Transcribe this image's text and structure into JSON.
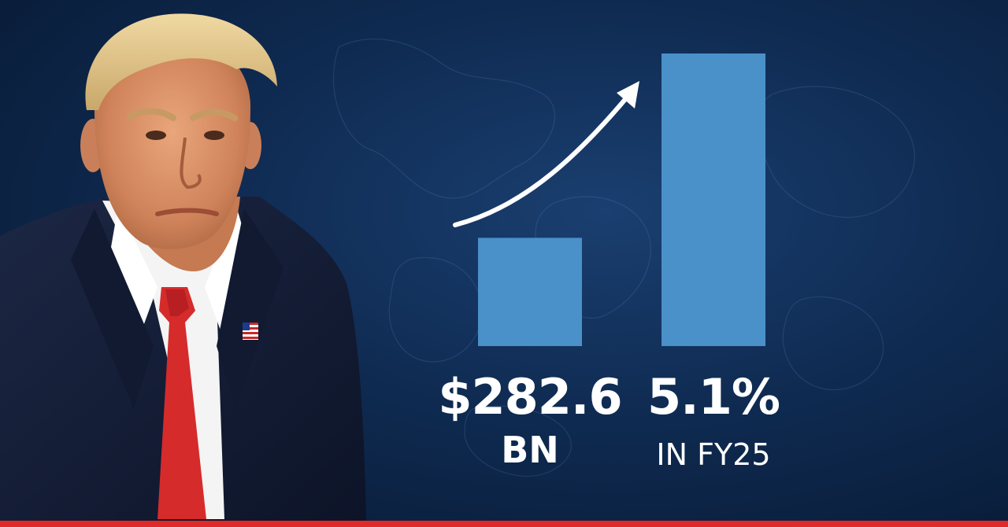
{
  "colors": {
    "background": "#0f2b52",
    "bar": "#4a90c9",
    "text": "#ffffff",
    "accent_bar": "#e02a2a",
    "tie": "#d62b2b",
    "suit": "#141d33"
  },
  "icons": [
    "trend-up-arrow-icon",
    "us-flag-pin-icon"
  ],
  "chart_data": {
    "type": "bar",
    "categories": [
      "",
      ""
    ],
    "values": [
      0.37,
      1.0
    ],
    "bar_labels": [
      {
        "main": "$282.6",
        "sub": "BN"
      },
      {
        "main": "5.1%",
        "sub": "IN FY25"
      }
    ],
    "title": "",
    "xlabel": "",
    "ylabel": "",
    "ylim": [
      0,
      1
    ],
    "grid": false,
    "legend": "none",
    "annotation": "upward trend arrow"
  }
}
